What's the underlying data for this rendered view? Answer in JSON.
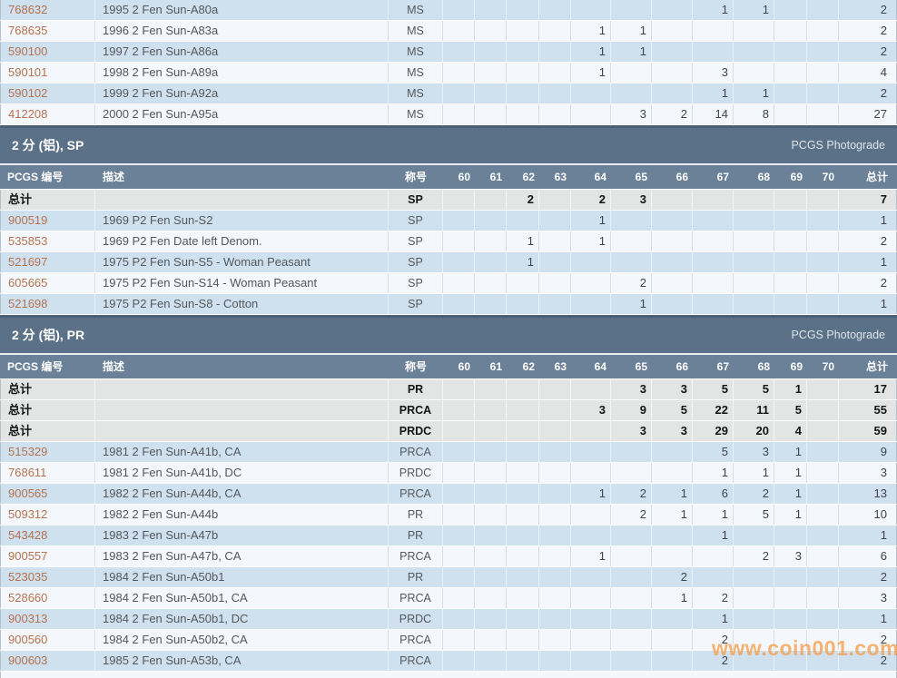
{
  "photograde_label": "PCGS Photograde",
  "watermark": "www.coin001.com",
  "columns": {
    "pcgs_no": "PCGS 编号",
    "desc": "描述",
    "designation": "称号",
    "grades": [
      "60",
      "61",
      "62",
      "63",
      "64",
      "65",
      "66",
      "67",
      "68",
      "69",
      "70"
    ],
    "total": "总计"
  },
  "colors": {
    "title_bar": "#5a7187",
    "header_bar": "#6a8198",
    "row_blue": "#cfe0ef",
    "row_white": "#f4f8fc",
    "row_total": "#e3e4e4",
    "link": "#b5734f",
    "table_dark": "#4a6175",
    "watermark": "#f59c46"
  },
  "sections": [
    {
      "title": "",
      "rows": [
        {
          "type": "data",
          "pcgs": "768632",
          "desc": "1995 2 Fen Sun-A80a",
          "desig": "MS",
          "g": [
            "",
            "",
            "",
            "",
            "",
            "",
            "",
            "1",
            "1",
            "",
            ""
          ],
          "total": "2"
        },
        {
          "type": "data",
          "pcgs": "768635",
          "desc": "1996 2 Fen Sun-A83a",
          "desig": "MS",
          "g": [
            "",
            "",
            "",
            "",
            "1",
            "1",
            "",
            "",
            "",
            "",
            ""
          ],
          "total": "2"
        },
        {
          "type": "data",
          "pcgs": "590100",
          "desc": "1997 2 Fen Sun-A86a",
          "desig": "MS",
          "g": [
            "",
            "",
            "",
            "",
            "1",
            "1",
            "",
            "",
            "",
            "",
            ""
          ],
          "total": "2"
        },
        {
          "type": "data",
          "pcgs": "590101",
          "desc": "1998 2 Fen Sun-A89a",
          "desig": "MS",
          "g": [
            "",
            "",
            "",
            "",
            "1",
            "",
            "",
            "3",
            "",
            "",
            ""
          ],
          "total": "4"
        },
        {
          "type": "data",
          "pcgs": "590102",
          "desc": "1999 2 Fen Sun-A92a",
          "desig": "MS",
          "g": [
            "",
            "",
            "",
            "",
            "",
            "",
            "",
            "1",
            "1",
            "",
            ""
          ],
          "total": "2"
        },
        {
          "type": "data",
          "pcgs": "412208",
          "desc": "2000 2 Fen Sun-A95a",
          "desig": "MS",
          "g": [
            "",
            "",
            "",
            "",
            "",
            "3",
            "2",
            "14",
            "8",
            "",
            ""
          ],
          "total": "27"
        }
      ]
    },
    {
      "title": "2 分 (铝), SP",
      "rows": [
        {
          "type": "total",
          "pcgs": "总计",
          "desc": "",
          "desig": "SP",
          "g": [
            "",
            "",
            "2",
            "",
            "2",
            "3",
            "",
            "",
            "",
            "",
            ""
          ],
          "total": "7"
        },
        {
          "type": "data",
          "pcgs": "900519",
          "desc": "1969 P2 Fen Sun-S2",
          "desig": "SP",
          "g": [
            "",
            "",
            "",
            "",
            "1",
            "",
            "",
            "",
            "",
            "",
            ""
          ],
          "total": "1"
        },
        {
          "type": "data",
          "pcgs": "535853",
          "desc": "1969 P2 Fen Date left Denom.",
          "desig": "SP",
          "g": [
            "",
            "",
            "1",
            "",
            "1",
            "",
            "",
            "",
            "",
            "",
            ""
          ],
          "total": "2"
        },
        {
          "type": "data",
          "pcgs": "521697",
          "desc": "1975 P2 Fen Sun-S5 - Woman Peasant",
          "desig": "SP",
          "g": [
            "",
            "",
            "1",
            "",
            "",
            "",
            "",
            "",
            "",
            "",
            ""
          ],
          "total": "1"
        },
        {
          "type": "data",
          "pcgs": "605665",
          "desc": "1975 P2 Fen Sun-S14 - Woman Peasant",
          "desig": "SP",
          "g": [
            "",
            "",
            "",
            "",
            "",
            "2",
            "",
            "",
            "",
            "",
            ""
          ],
          "total": "2"
        },
        {
          "type": "data",
          "pcgs": "521698",
          "desc": "1975 P2 Fen Sun-S8 - Cotton",
          "desig": "SP",
          "g": [
            "",
            "",
            "",
            "",
            "",
            "1",
            "",
            "",
            "",
            "",
            ""
          ],
          "total": "1"
        }
      ]
    },
    {
      "title": "2 分 (铝), PR",
      "rows": [
        {
          "type": "total",
          "pcgs": "总计",
          "desc": "",
          "desig": "PR",
          "g": [
            "",
            "",
            "",
            "",
            "",
            "3",
            "3",
            "5",
            "5",
            "1",
            ""
          ],
          "total": "17"
        },
        {
          "type": "total",
          "pcgs": "总计",
          "desc": "",
          "desig": "PRCA",
          "g": [
            "",
            "",
            "",
            "",
            "3",
            "9",
            "5",
            "22",
            "11",
            "5",
            ""
          ],
          "total": "55"
        },
        {
          "type": "total",
          "pcgs": "总计",
          "desc": "",
          "desig": "PRDC",
          "g": [
            "",
            "",
            "",
            "",
            "",
            "3",
            "3",
            "29",
            "20",
            "4",
            ""
          ],
          "total": "59"
        },
        {
          "type": "data",
          "pcgs": "515329",
          "desc": "1981 2 Fen Sun-A41b, CA",
          "desig": "PRCA",
          "g": [
            "",
            "",
            "",
            "",
            "",
            "",
            "",
            "5",
            "3",
            "1",
            ""
          ],
          "total": "9"
        },
        {
          "type": "data",
          "pcgs": "768611",
          "desc": "1981 2 Fen Sun-A41b, DC",
          "desig": "PRDC",
          "g": [
            "",
            "",
            "",
            "",
            "",
            "",
            "",
            "1",
            "1",
            "1",
            ""
          ],
          "total": "3"
        },
        {
          "type": "data",
          "pcgs": "900565",
          "desc": "1982 2 Fen Sun-A44b, CA",
          "desig": "PRCA",
          "g": [
            "",
            "",
            "",
            "",
            "1",
            "2",
            "1",
            "6",
            "2",
            "1",
            ""
          ],
          "total": "13"
        },
        {
          "type": "data",
          "pcgs": "509312",
          "desc": "1982 2 Fen Sun-A44b",
          "desig": "PR",
          "g": [
            "",
            "",
            "",
            "",
            "",
            "2",
            "1",
            "1",
            "5",
            "1",
            ""
          ],
          "total": "10"
        },
        {
          "type": "data",
          "pcgs": "543428",
          "desc": "1983 2 Fen Sun-A47b",
          "desig": "PR",
          "g": [
            "",
            "",
            "",
            "",
            "",
            "",
            "",
            "1",
            "",
            "",
            ""
          ],
          "total": "1"
        },
        {
          "type": "data",
          "pcgs": "900557",
          "desc": "1983 2 Fen Sun-A47b, CA",
          "desig": "PRCA",
          "g": [
            "",
            "",
            "",
            "",
            "1",
            "",
            "",
            "",
            "2",
            "3",
            ""
          ],
          "total": "6"
        },
        {
          "type": "data",
          "pcgs": "523035",
          "desc": "1984 2 Fen Sun-A50b1",
          "desig": "PR",
          "g": [
            "",
            "",
            "",
            "",
            "",
            "",
            "2",
            "",
            "",
            "",
            ""
          ],
          "total": "2"
        },
        {
          "type": "data",
          "pcgs": "528660",
          "desc": "1984 2 Fen Sun-A50b1, CA",
          "desig": "PRCA",
          "g": [
            "",
            "",
            "",
            "",
            "",
            "",
            "1",
            "2",
            "",
            "",
            ""
          ],
          "total": "3"
        },
        {
          "type": "data",
          "pcgs": "900313",
          "desc": "1984 2 Fen Sun-A50b1, DC",
          "desig": "PRDC",
          "g": [
            "",
            "",
            "",
            "",
            "",
            "",
            "",
            "1",
            "",
            "",
            ""
          ],
          "total": "1"
        },
        {
          "type": "data",
          "pcgs": "900560",
          "desc": "1984 2 Fen Sun-A50b2, CA",
          "desig": "PRCA",
          "g": [
            "",
            "",
            "",
            "",
            "",
            "",
            "",
            "2",
            "",
            "",
            ""
          ],
          "total": "2"
        },
        {
          "type": "data",
          "pcgs": "900603",
          "desc": "1985 2 Fen Sun-A53b, CA",
          "desig": "PRCA",
          "g": [
            "",
            "",
            "",
            "",
            "",
            "",
            "",
            "2",
            "",
            "",
            ""
          ],
          "total": "2"
        }
      ]
    }
  ]
}
